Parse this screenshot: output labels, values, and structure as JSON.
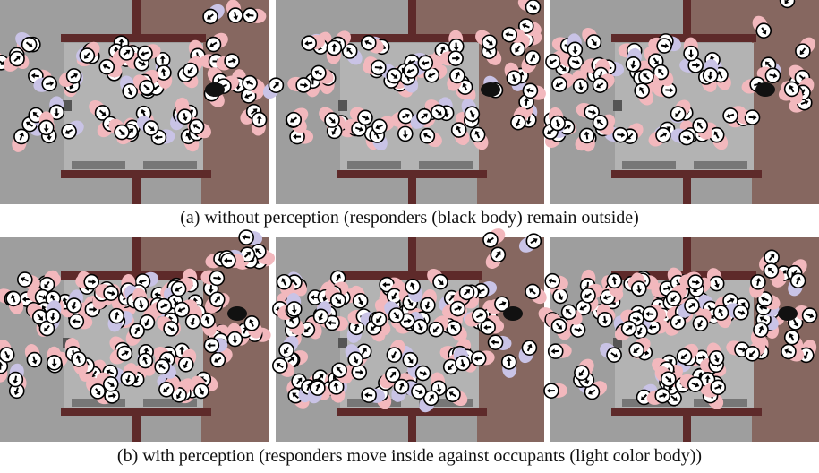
{
  "figure": {
    "rows": [
      {
        "caption": "(a) without perception (responders (black body) remain outside)"
      },
      {
        "caption": "(b) with perception (responders move inside against occupants (light color body))"
      }
    ]
  }
}
